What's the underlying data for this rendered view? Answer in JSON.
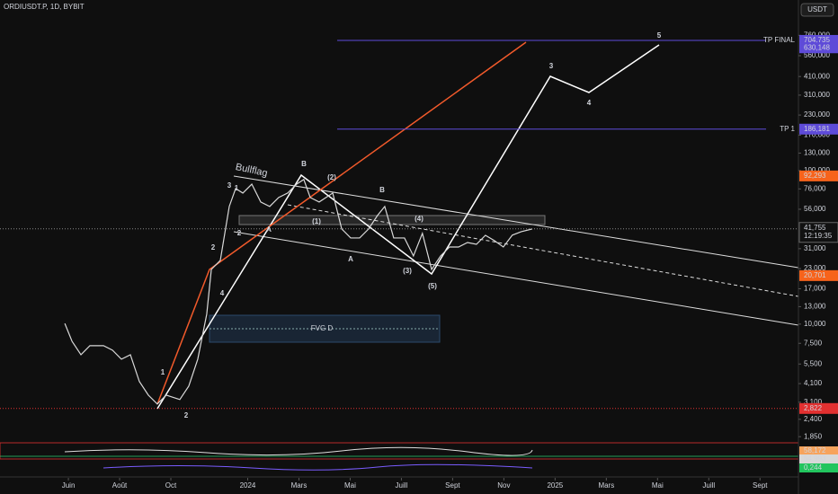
{
  "chart_data": {
    "type": "line",
    "title": "ORDIUSDT.P, 1D, BYBIT",
    "currency": "USDT",
    "color": "#d9d9d9",
    "log_scale": true,
    "x": [
      -0.14,
      0.14,
      0.49,
      0.84,
      1.37,
      1.72,
      2.07,
      2.42,
      2.77,
      3.12,
      3.47,
      3.82,
      4.35,
      4.7,
      5.05,
      5.4,
      5.58,
      5.93,
      6.28,
      6.53,
      6.81,
      7.16,
      7.51,
      7.86,
      8.21,
      8.56,
      8.91,
      9.19,
      9.44,
      9.79,
      10.32,
      10.67,
      11.02,
      11.37,
      11.72,
      12.07,
      12.35,
      12.7,
      13.12,
      13.47,
      13.82,
      14.18,
      14.53,
      14.88,
      15.23,
      15.58,
      15.93,
      16.28,
      16.63,
      16.98,
      17.33,
      17.68,
      18.11
    ],
    "values": [
      10.1,
      7.74,
      6.32,
      7.24,
      7.24,
      6.77,
      5.91,
      6.32,
      4.23,
      3.45,
      3.02,
      3.45,
      3.23,
      3.95,
      5.91,
      11.6,
      22.7,
      26.0,
      58.4,
      76.4,
      71.4,
      81.6,
      62.4,
      58.4,
      66.8,
      71.4,
      81.6,
      87.5,
      66.8,
      62.4,
      71.4,
      41.7,
      36.4,
      36.4,
      41.7,
      51.1,
      58.4,
      36.4,
      36.4,
      27.8,
      39.0,
      22.7,
      27.8,
      31.8,
      31.8,
      34.0,
      33.1,
      37.9,
      35.0,
      31.8,
      38.0,
      40.0,
      41.7
    ],
    "xlim": [
      -2.67,
      28.5
    ],
    "xticks": [
      {
        "value": 0,
        "label": "Juin"
      },
      {
        "value": 2,
        "label": "Août"
      },
      {
        "value": 4,
        "label": "Oct"
      },
      {
        "value": 7,
        "label": "2024"
      },
      {
        "value": 9,
        "label": "Mars"
      },
      {
        "value": 11,
        "label": "Mai"
      },
      {
        "value": 13,
        "label": "Juill"
      },
      {
        "value": 15,
        "label": "Sept"
      },
      {
        "value": 17,
        "label": "Nov"
      },
      {
        "value": 19,
        "label": "2025"
      },
      {
        "value": 21,
        "label": "Mars"
      },
      {
        "value": 23,
        "label": "Mai"
      },
      {
        "value": 25,
        "label": "Juill"
      },
      {
        "value": 27,
        "label": "Sept"
      }
    ],
    "ylim": [
      1.71,
      1291
    ],
    "yticks": [
      {
        "value": 760,
        "label": "760,000"
      },
      {
        "value": 560,
        "label": "560,000"
      },
      {
        "value": 410,
        "label": "410,000"
      },
      {
        "value": 310,
        "label": "310,000"
      },
      {
        "value": 230,
        "label": "230,000"
      },
      {
        "value": 170,
        "label": "170,000"
      },
      {
        "value": 130,
        "label": "130,000"
      },
      {
        "value": 100,
        "label": "100,000"
      },
      {
        "value": 76,
        "label": "76,000"
      },
      {
        "value": 56,
        "label": "56,000"
      },
      {
        "value": 31,
        "label": "31,000"
      },
      {
        "value": 23,
        "label": "23,000"
      },
      {
        "value": 17,
        "label": "17,000"
      },
      {
        "value": 13,
        "label": "13,000"
      },
      {
        "value": 10,
        "label": "10,000"
      },
      {
        "value": 7.5,
        "label": "7,500"
      },
      {
        "value": 5.5,
        "label": "5,500"
      },
      {
        "value": 4.1,
        "label": "4,100"
      },
      {
        "value": 3.1,
        "label": "3,100"
      },
      {
        "value": 2.4,
        "label": "2,400"
      },
      {
        "value": 1.85,
        "label": "1,850"
      }
    ],
    "levels": [
      {
        "name": "TP FINAL",
        "value": 704.735,
        "label": "704,735",
        "color": "#5e4bd8"
      },
      {
        "name": "TP 1",
        "value": 186.181,
        "label": "186,181",
        "color": "#5e4bd8"
      }
    ],
    "price_labels": [
      {
        "value": 630.148,
        "label": "630,148",
        "color": "#5e4bd8"
      },
      {
        "value": 92.293,
        "label": "92,293",
        "color": "#f7631b"
      },
      {
        "value": 20.701,
        "label": "20,701",
        "color": "#f7631b"
      },
      {
        "value": 2.822,
        "label": "2,822",
        "color": "#e23030"
      }
    ],
    "last_price": {
      "value": 41.755,
      "label": "41,755",
      "countdown": "12:19:35"
    },
    "pattern_label": "Bullflag",
    "zone_label": "FVG D",
    "annotations": [
      {
        "text": "1",
        "color": "#ffffff"
      },
      {
        "text": "2",
        "color": "#ffffff"
      },
      {
        "text": "3",
        "color": "#ffffff"
      },
      {
        "text": "B",
        "color": "#ffffff"
      },
      {
        "text": "(2)",
        "color": "#ffffff"
      },
      {
        "text": "(1)",
        "color": "#ffffff"
      },
      {
        "text": "(4)",
        "color": "#ffffff"
      },
      {
        "text": "B",
        "color": "#f5b942"
      },
      {
        "text": "A",
        "color": "#f5b942"
      },
      {
        "text": "(3)",
        "color": "#ffffff"
      },
      {
        "text": "(5)",
        "color": "#ffffff"
      },
      {
        "text": "2",
        "color": "#e03030"
      },
      {
        "text": "4",
        "color": "#e03030"
      },
      {
        "text": "1",
        "color": "#2ecc71"
      },
      {
        "text": "2",
        "color": "#2ecc71"
      },
      {
        "text": "A",
        "color": "#f5b942"
      },
      {
        "text": "3",
        "color": "#ffffff"
      },
      {
        "text": "4",
        "color": "#ffffff"
      },
      {
        "text": "5",
        "color": "#ffffff"
      }
    ],
    "indicator_labels": [
      {
        "text": "58,172",
        "color": "#f7a35c"
      },
      {
        "text": "54,993",
        "color": "#d8d8d8"
      },
      {
        "text": "0,244",
        "color": "#22c55e"
      }
    ]
  }
}
